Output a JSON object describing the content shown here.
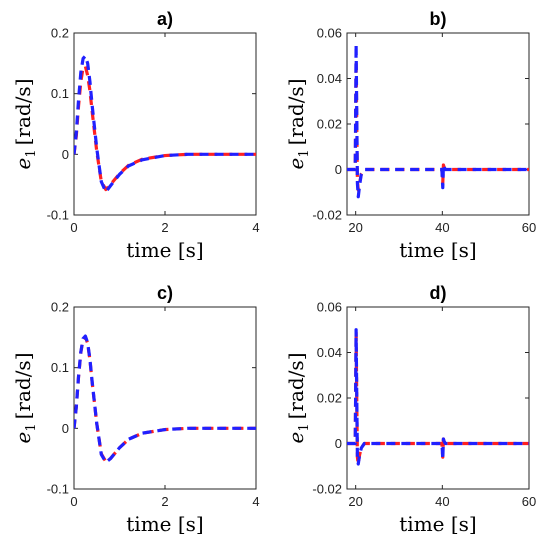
{
  "chart_data": [
    {
      "type": "line",
      "title": "a)",
      "xlabel": "time [s]",
      "ylabel_var": "e",
      "ylabel_sub": "1",
      "ylabel_unit": "[rad/s]",
      "xlim": [
        0,
        4
      ],
      "ylim": [
        -0.1,
        0.2
      ],
      "xticks": [
        0,
        2,
        4
      ],
      "yticks": [
        -0.1,
        0,
        0.1,
        0.2
      ],
      "ytick_labels": [
        "-0.1",
        "0",
        "0.1",
        "0.2"
      ],
      "series": [
        {
          "color": "#ff2020",
          "style": "dashed",
          "x": [
            0,
            0.05,
            0.1,
            0.15,
            0.2,
            0.25,
            0.3,
            0.35,
            0.4,
            0.5,
            0.6,
            0.7,
            0.8,
            1.0,
            1.2,
            1.5,
            2.0,
            2.5,
            3.0,
            3.5,
            4.0
          ],
          "y": [
            0,
            0.03,
            0.08,
            0.12,
            0.143,
            0.145,
            0.13,
            0.105,
            0.07,
            0.005,
            -0.045,
            -0.058,
            -0.05,
            -0.032,
            -0.018,
            -0.008,
            -0.002,
            0,
            0,
            0,
            0
          ]
        },
        {
          "color": "#2020ff",
          "style": "dashed",
          "x": [
            0,
            0.05,
            0.1,
            0.15,
            0.2,
            0.25,
            0.3,
            0.35,
            0.4,
            0.5,
            0.6,
            0.7,
            0.8,
            1.0,
            1.2,
            1.5,
            2.0,
            2.5,
            3.0,
            3.5,
            4.0
          ],
          "y": [
            0,
            0.035,
            0.09,
            0.135,
            0.158,
            0.162,
            0.15,
            0.12,
            0.08,
            0.01,
            -0.045,
            -0.062,
            -0.052,
            -0.033,
            -0.019,
            -0.009,
            -0.002,
            0,
            0,
            0,
            0
          ]
        }
      ]
    },
    {
      "type": "line",
      "title": "b)",
      "xlabel": "time [s]",
      "ylabel_var": "e",
      "ylabel_sub": "1",
      "ylabel_unit": "[rad/s]",
      "xlim": [
        18,
        60
      ],
      "ylim": [
        -0.02,
        0.06
      ],
      "xticks": [
        20,
        40,
        60
      ],
      "yticks": [
        -0.02,
        0,
        0.02,
        0.04,
        0.06
      ],
      "ytick_labels": [
        "-0.02",
        "0",
        "0.02",
        "0.04",
        "0.06"
      ],
      "series": [
        {
          "color": "#ff2020",
          "style": "dashed",
          "x": [
            18,
            19.9,
            20.0,
            20.1,
            20.25,
            20.4,
            20.6,
            20.9,
            21.3,
            22,
            39.9,
            40.0,
            40.1,
            40.25,
            40.4,
            40.7,
            60
          ],
          "y": [
            0,
            0,
            0.02,
            0.048,
            0.02,
            -0.005,
            -0.009,
            -0.006,
            -0.002,
            0,
            0,
            -0.003,
            -0.006,
            0.002,
            0.001,
            0,
            0
          ]
        },
        {
          "color": "#2020ff",
          "style": "dashed",
          "x": [
            18,
            19.9,
            20.0,
            20.1,
            20.25,
            20.4,
            20.6,
            20.9,
            21.3,
            22,
            39.9,
            40.0,
            40.1,
            40.25,
            40.4,
            40.7,
            60
          ],
          "y": [
            0,
            0,
            0.025,
            0.055,
            0.025,
            -0.006,
            -0.012,
            -0.007,
            -0.002,
            0,
            0,
            -0.004,
            -0.008,
            0.002,
            0.001,
            0,
            0
          ]
        }
      ]
    },
    {
      "type": "line",
      "title": "c)",
      "xlabel": "time [s]",
      "ylabel_var": "e",
      "ylabel_sub": "1",
      "ylabel_unit": "[rad/s]",
      "xlim": [
        0,
        4
      ],
      "ylim": [
        -0.1,
        0.2
      ],
      "xticks": [
        0,
        2,
        4
      ],
      "yticks": [
        -0.1,
        0,
        0.1,
        0.2
      ],
      "ytick_labels": [
        "-0.1",
        "0",
        "0.1",
        "0.2"
      ],
      "series": [
        {
          "color": "#ff2020",
          "style": "dashed",
          "x": [
            0,
            0.05,
            0.1,
            0.15,
            0.2,
            0.25,
            0.3,
            0.35,
            0.4,
            0.5,
            0.6,
            0.7,
            0.8,
            1.0,
            1.2,
            1.5,
            2.0,
            2.5,
            3.0,
            3.5,
            4.0
          ],
          "y": [
            0,
            0.035,
            0.085,
            0.125,
            0.147,
            0.151,
            0.14,
            0.113,
            0.075,
            0.008,
            -0.042,
            -0.055,
            -0.05,
            -0.032,
            -0.018,
            -0.008,
            -0.002,
            0,
            0,
            0,
            0
          ]
        },
        {
          "color": "#2020ff",
          "style": "dashed",
          "x": [
            0,
            0.05,
            0.1,
            0.15,
            0.2,
            0.25,
            0.3,
            0.35,
            0.4,
            0.5,
            0.6,
            0.7,
            0.8,
            1.0,
            1.2,
            1.5,
            2.0,
            2.5,
            3.0,
            3.5,
            4.0
          ],
          "y": [
            0,
            0.035,
            0.086,
            0.126,
            0.148,
            0.152,
            0.141,
            0.114,
            0.076,
            0.008,
            -0.043,
            -0.056,
            -0.05,
            -0.032,
            -0.018,
            -0.008,
            -0.002,
            0,
            0,
            0,
            0
          ]
        }
      ]
    },
    {
      "type": "line",
      "title": "d)",
      "xlabel": "time [s]",
      "ylabel_var": "e",
      "ylabel_sub": "1",
      "ylabel_unit": "[rad/s]",
      "xlim": [
        18,
        60
      ],
      "ylim": [
        -0.02,
        0.06
      ],
      "xticks": [
        20,
        40,
        60
      ],
      "yticks": [
        -0.02,
        0,
        0.02,
        0.04,
        0.06
      ],
      "ytick_labels": [
        "-0.02",
        "0",
        "0.02",
        "0.04",
        "0.06"
      ],
      "series": [
        {
          "color": "#ff2020",
          "style": "dashed",
          "x": [
            18,
            19.9,
            20.0,
            20.1,
            20.25,
            20.4,
            20.6,
            20.9,
            21.3,
            22,
            39.9,
            40.0,
            40.1,
            40.25,
            40.4,
            40.7,
            60
          ],
          "y": [
            0,
            0,
            0.022,
            0.049,
            0.02,
            -0.006,
            -0.009,
            -0.005,
            -0.002,
            0,
            0,
            -0.003,
            -0.006,
            0.002,
            0.001,
            0,
            0
          ]
        },
        {
          "color": "#2020ff",
          "style": "dashed",
          "x": [
            18,
            19.9,
            20.0,
            20.1,
            20.25,
            20.4,
            20.6,
            20.9,
            21.3,
            22,
            39.9,
            40.0,
            40.1,
            40.25,
            40.4,
            40.7,
            60
          ],
          "y": [
            0,
            0,
            0.023,
            0.05,
            0.021,
            -0.006,
            -0.009,
            -0.005,
            -0.002,
            0,
            0,
            -0.003,
            -0.007,
            0.002,
            0.001,
            0,
            0
          ]
        }
      ]
    }
  ]
}
